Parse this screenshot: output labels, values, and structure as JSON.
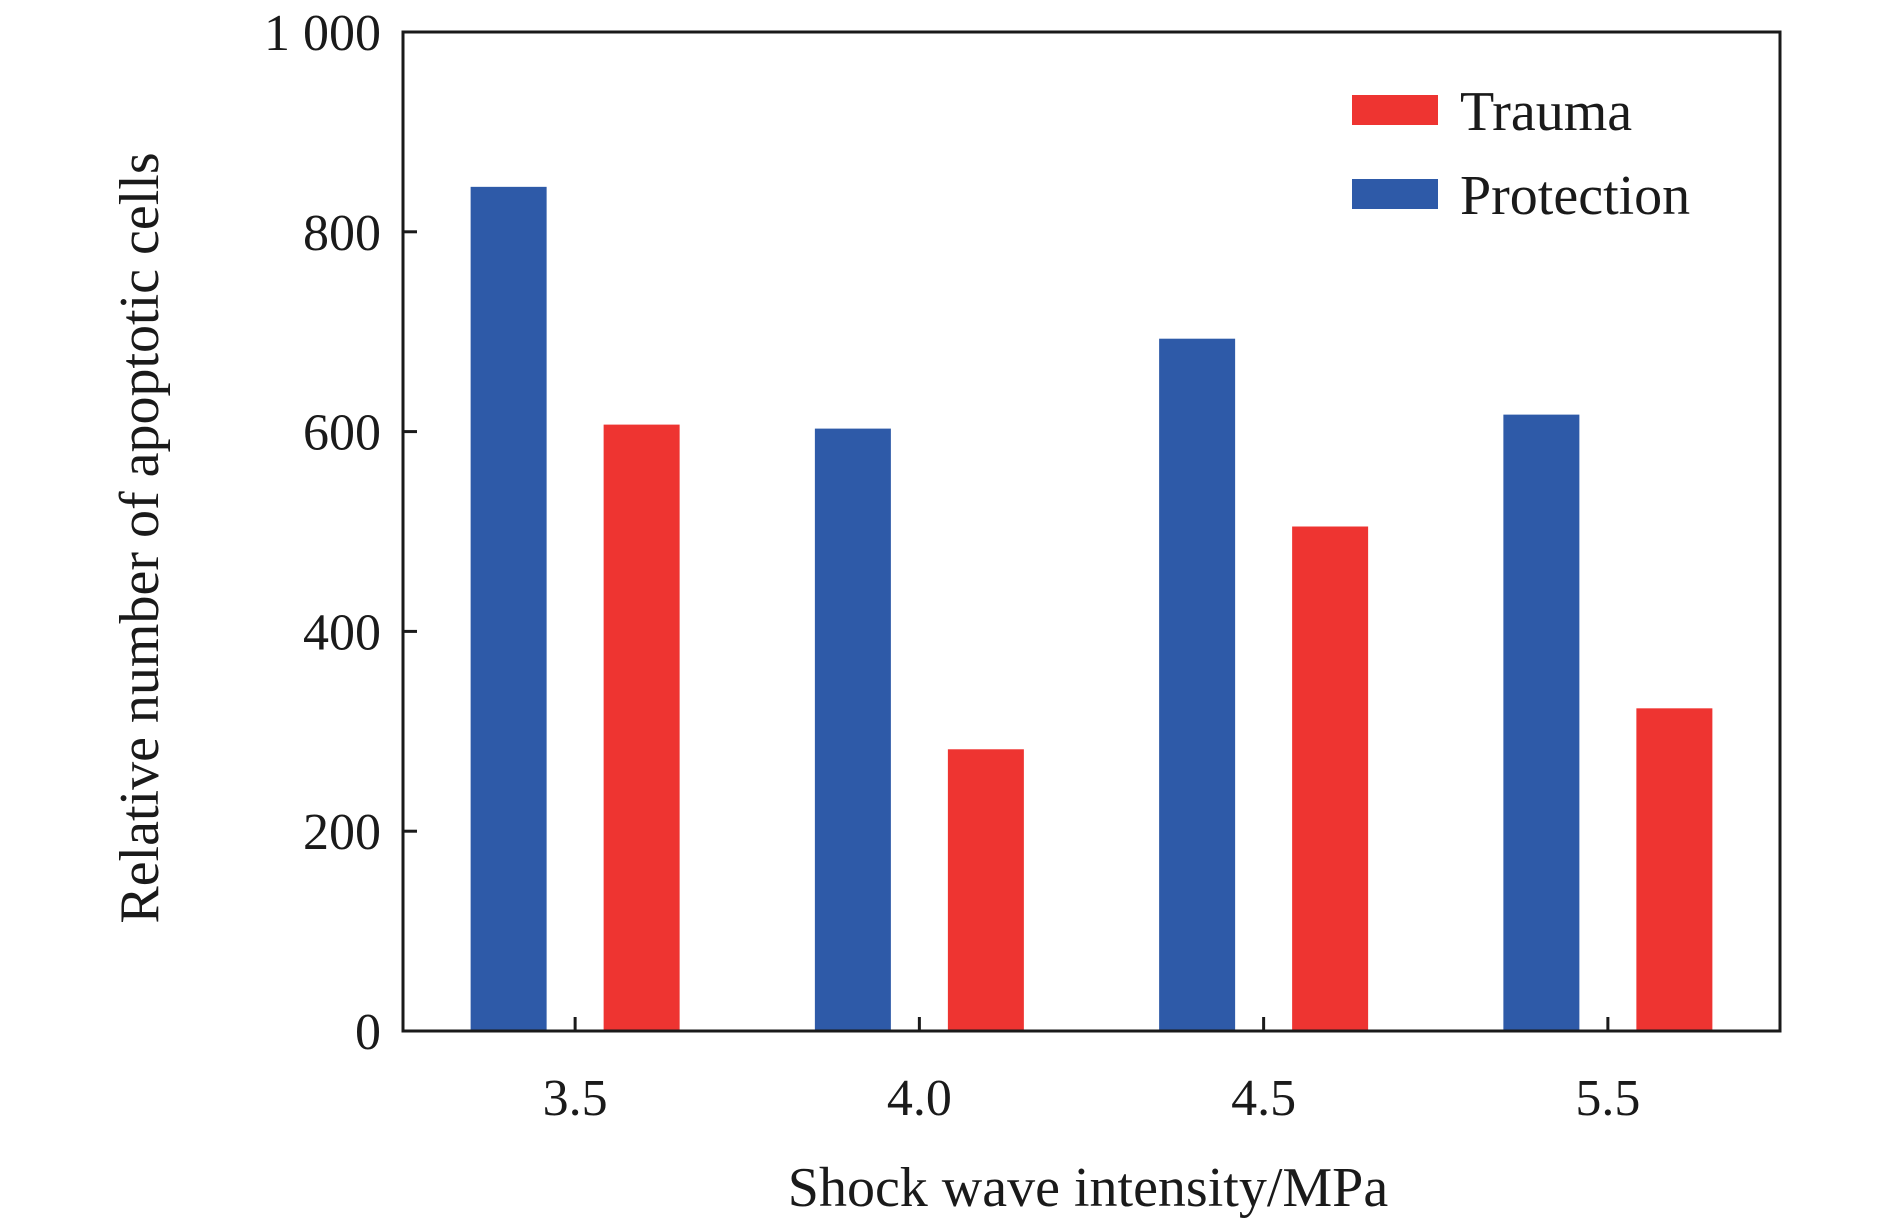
{
  "chart_data": {
    "type": "bar",
    "title": "",
    "xlabel": "Shock wave intensity/MPa",
    "ylabel": "Relative number of apoptotic cells",
    "categories": [
      "3.5",
      "4.0",
      "4.5",
      "5.5"
    ],
    "series": [
      {
        "name": "Protection",
        "color": "#2e5aa8",
        "values": [
          845,
          603,
          693,
          617
        ]
      },
      {
        "name": "Trauma",
        "color": "#ee3431",
        "values": [
          607,
          282,
          505,
          323
        ]
      }
    ],
    "ylim": [
      0,
      1000
    ],
    "yticks": [
      0,
      200,
      400,
      600,
      800,
      1000
    ],
    "ytick_labels": [
      "0",
      "200",
      "400",
      "600",
      "800",
      "1 000"
    ],
    "grid": false,
    "legend": {
      "position": "top-right",
      "entries": [
        {
          "label": "Trauma",
          "color": "#ee3431"
        },
        {
          "label": "Protection",
          "color": "#2e5aa8"
        }
      ]
    }
  }
}
